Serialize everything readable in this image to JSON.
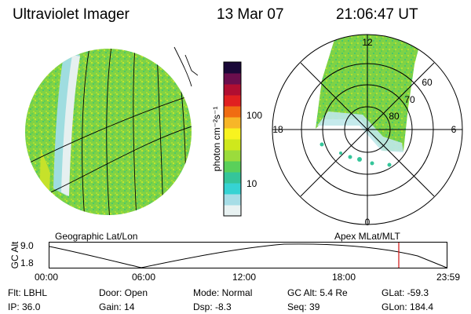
{
  "header": {
    "title": "Ultraviolet Imager",
    "date": "13 Mar 07",
    "time": "21:06:47 UT"
  },
  "left_panel": {
    "caption": "Geographic Lat/Lon"
  },
  "colorbar": {
    "unit_label": "photon cm⁻²s⁻¹",
    "ticks": [
      "100",
      "10"
    ],
    "colors": [
      "#e8f2f2",
      "#a6dde6",
      "#36d3d3",
      "#35c59a",
      "#5ad05a",
      "#9bdc3c",
      "#cfe81c",
      "#f8f31f",
      "#f7b628",
      "#f06c12",
      "#e02020",
      "#b00e31",
      "#6a0e4d",
      "#1a0838"
    ]
  },
  "right_panel": {
    "caption": "Apex MLat/MLT",
    "mlt_labels": [
      "12",
      "18",
      "6",
      "0"
    ],
    "mlat_labels": [
      "60",
      "70",
      "80"
    ]
  },
  "altitude_plot": {
    "ylabel": "GC Alt",
    "yticks": [
      "9.0",
      "1.8"
    ],
    "xticks": [
      "00:00",
      "06:00",
      "12:00",
      "18:00",
      "23:59"
    ],
    "current_time_color": "#d01010"
  },
  "info": {
    "flt": "Flt: LBHL",
    "ip": "IP: 36.0",
    "door": "Door: Open",
    "gain": "Gain: 14",
    "mode": "Mode: Normal",
    "dsp": "Dsp:    -8.3",
    "gcalt": "GC Alt: 5.4 Re",
    "seq": "Seq: 39",
    "glat": "GLat: -59.3",
    "glon": "GLon: 184.4"
  }
}
